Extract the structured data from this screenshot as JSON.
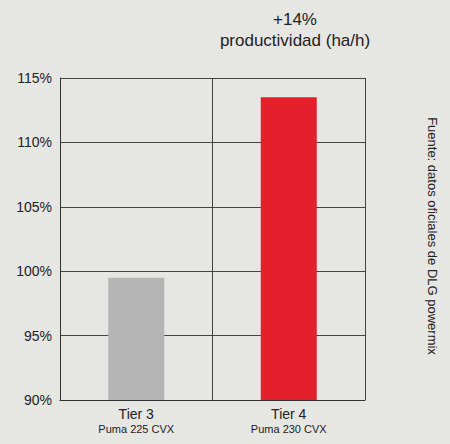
{
  "chart_data": {
    "type": "bar",
    "title": "+14%",
    "subtitle": "productividad (ha/h)",
    "annotation": "Fuente: datos oficiales de DLG powermix",
    "categories": [
      "Tier 3",
      "Tier 4"
    ],
    "models": [
      "Puma 225 CVX",
      "Puma 230 CVX"
    ],
    "values": [
      99.5,
      113.5
    ],
    "colors": [
      "#b5b5b5",
      "#e3202b"
    ],
    "ylim": [
      90,
      115
    ],
    "yticks": [
      {
        "value": 90,
        "label": "90%"
      },
      {
        "value": 95,
        "label": "95%"
      },
      {
        "value": 100,
        "label": "100%"
      },
      {
        "value": 105,
        "label": "105%"
      },
      {
        "value": 110,
        "label": "110%"
      },
      {
        "value": 115,
        "label": "115%"
      }
    ],
    "grid": true
  }
}
